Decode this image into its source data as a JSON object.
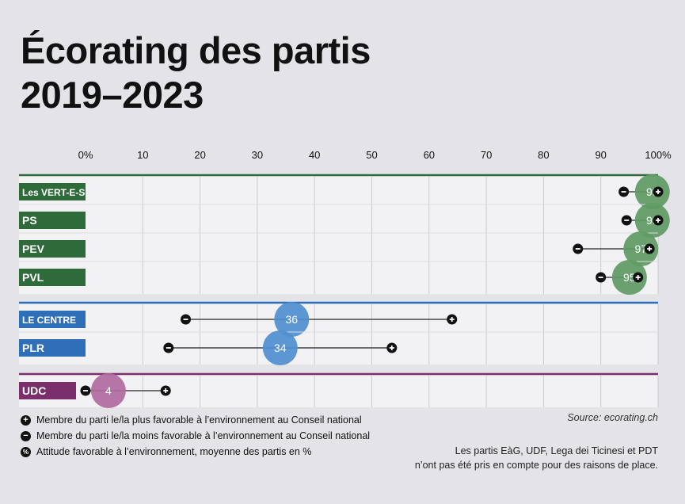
{
  "title_line1": "Écorating des partis",
  "title_line2": "2019–2023",
  "chart_data": {
    "type": "dot-range",
    "title": "Écorating des partis 2019–2023",
    "x_ticks": [
      "0%",
      "10",
      "20",
      "30",
      "40",
      "50",
      "60",
      "70",
      "80",
      "90",
      "100%"
    ],
    "xlim": [
      0,
      100
    ],
    "groups": [
      {
        "color": "#2f6b3a",
        "bubble_color": "#5e9a63",
        "parties": [
          {
            "name": "Les VERT-E-S",
            "mean": 99,
            "min": 94,
            "max": 100,
            "label": "99"
          },
          {
            "name": "PS",
            "mean": 99,
            "min": 94.5,
            "max": 100,
            "label": "99"
          },
          {
            "name": "PEV",
            "mean": 97,
            "min": 86,
            "max": 98.5,
            "label": "97"
          },
          {
            "name": "PVL",
            "mean": 95,
            "min": 90,
            "max": 96.5,
            "label": "95"
          }
        ]
      },
      {
        "color": "#2f6fb8",
        "bubble_color": "#4f8fd0",
        "parties": [
          {
            "name": "LE CENTRE",
            "mean": 36,
            "min": 17.5,
            "max": 64,
            "label": "36"
          },
          {
            "name": "PLR",
            "mean": 34,
            "min": 14.5,
            "max": 53.5,
            "label": "34"
          }
        ]
      },
      {
        "color": "#7a2e6a",
        "bubble_color": "#b06aa0",
        "parties": [
          {
            "name": "UDC",
            "mean": 4,
            "min": 0,
            "max": 14,
            "label": "4"
          }
        ]
      }
    ]
  },
  "legend": [
    {
      "icon": "plus-icon",
      "symbol": "+",
      "text": "Membre du parti le/la plus favorable à l’environnement au Conseil national"
    },
    {
      "icon": "minus-icon",
      "symbol": "−",
      "text": "Membre du parti le/la moins favorable à l’environnement au Conseil national"
    },
    {
      "icon": "percent-icon",
      "symbol": "%",
      "text": "Attitude favorable à l’environnement, moyenne des partis en %"
    }
  ],
  "source": "Source: ecorating.ch",
  "note_line1": "Les partis EàG, UDF, Lega dei Ticinesi et PDT",
  "note_line2": "n’ont pas été pris en compte pour des raisons de place."
}
